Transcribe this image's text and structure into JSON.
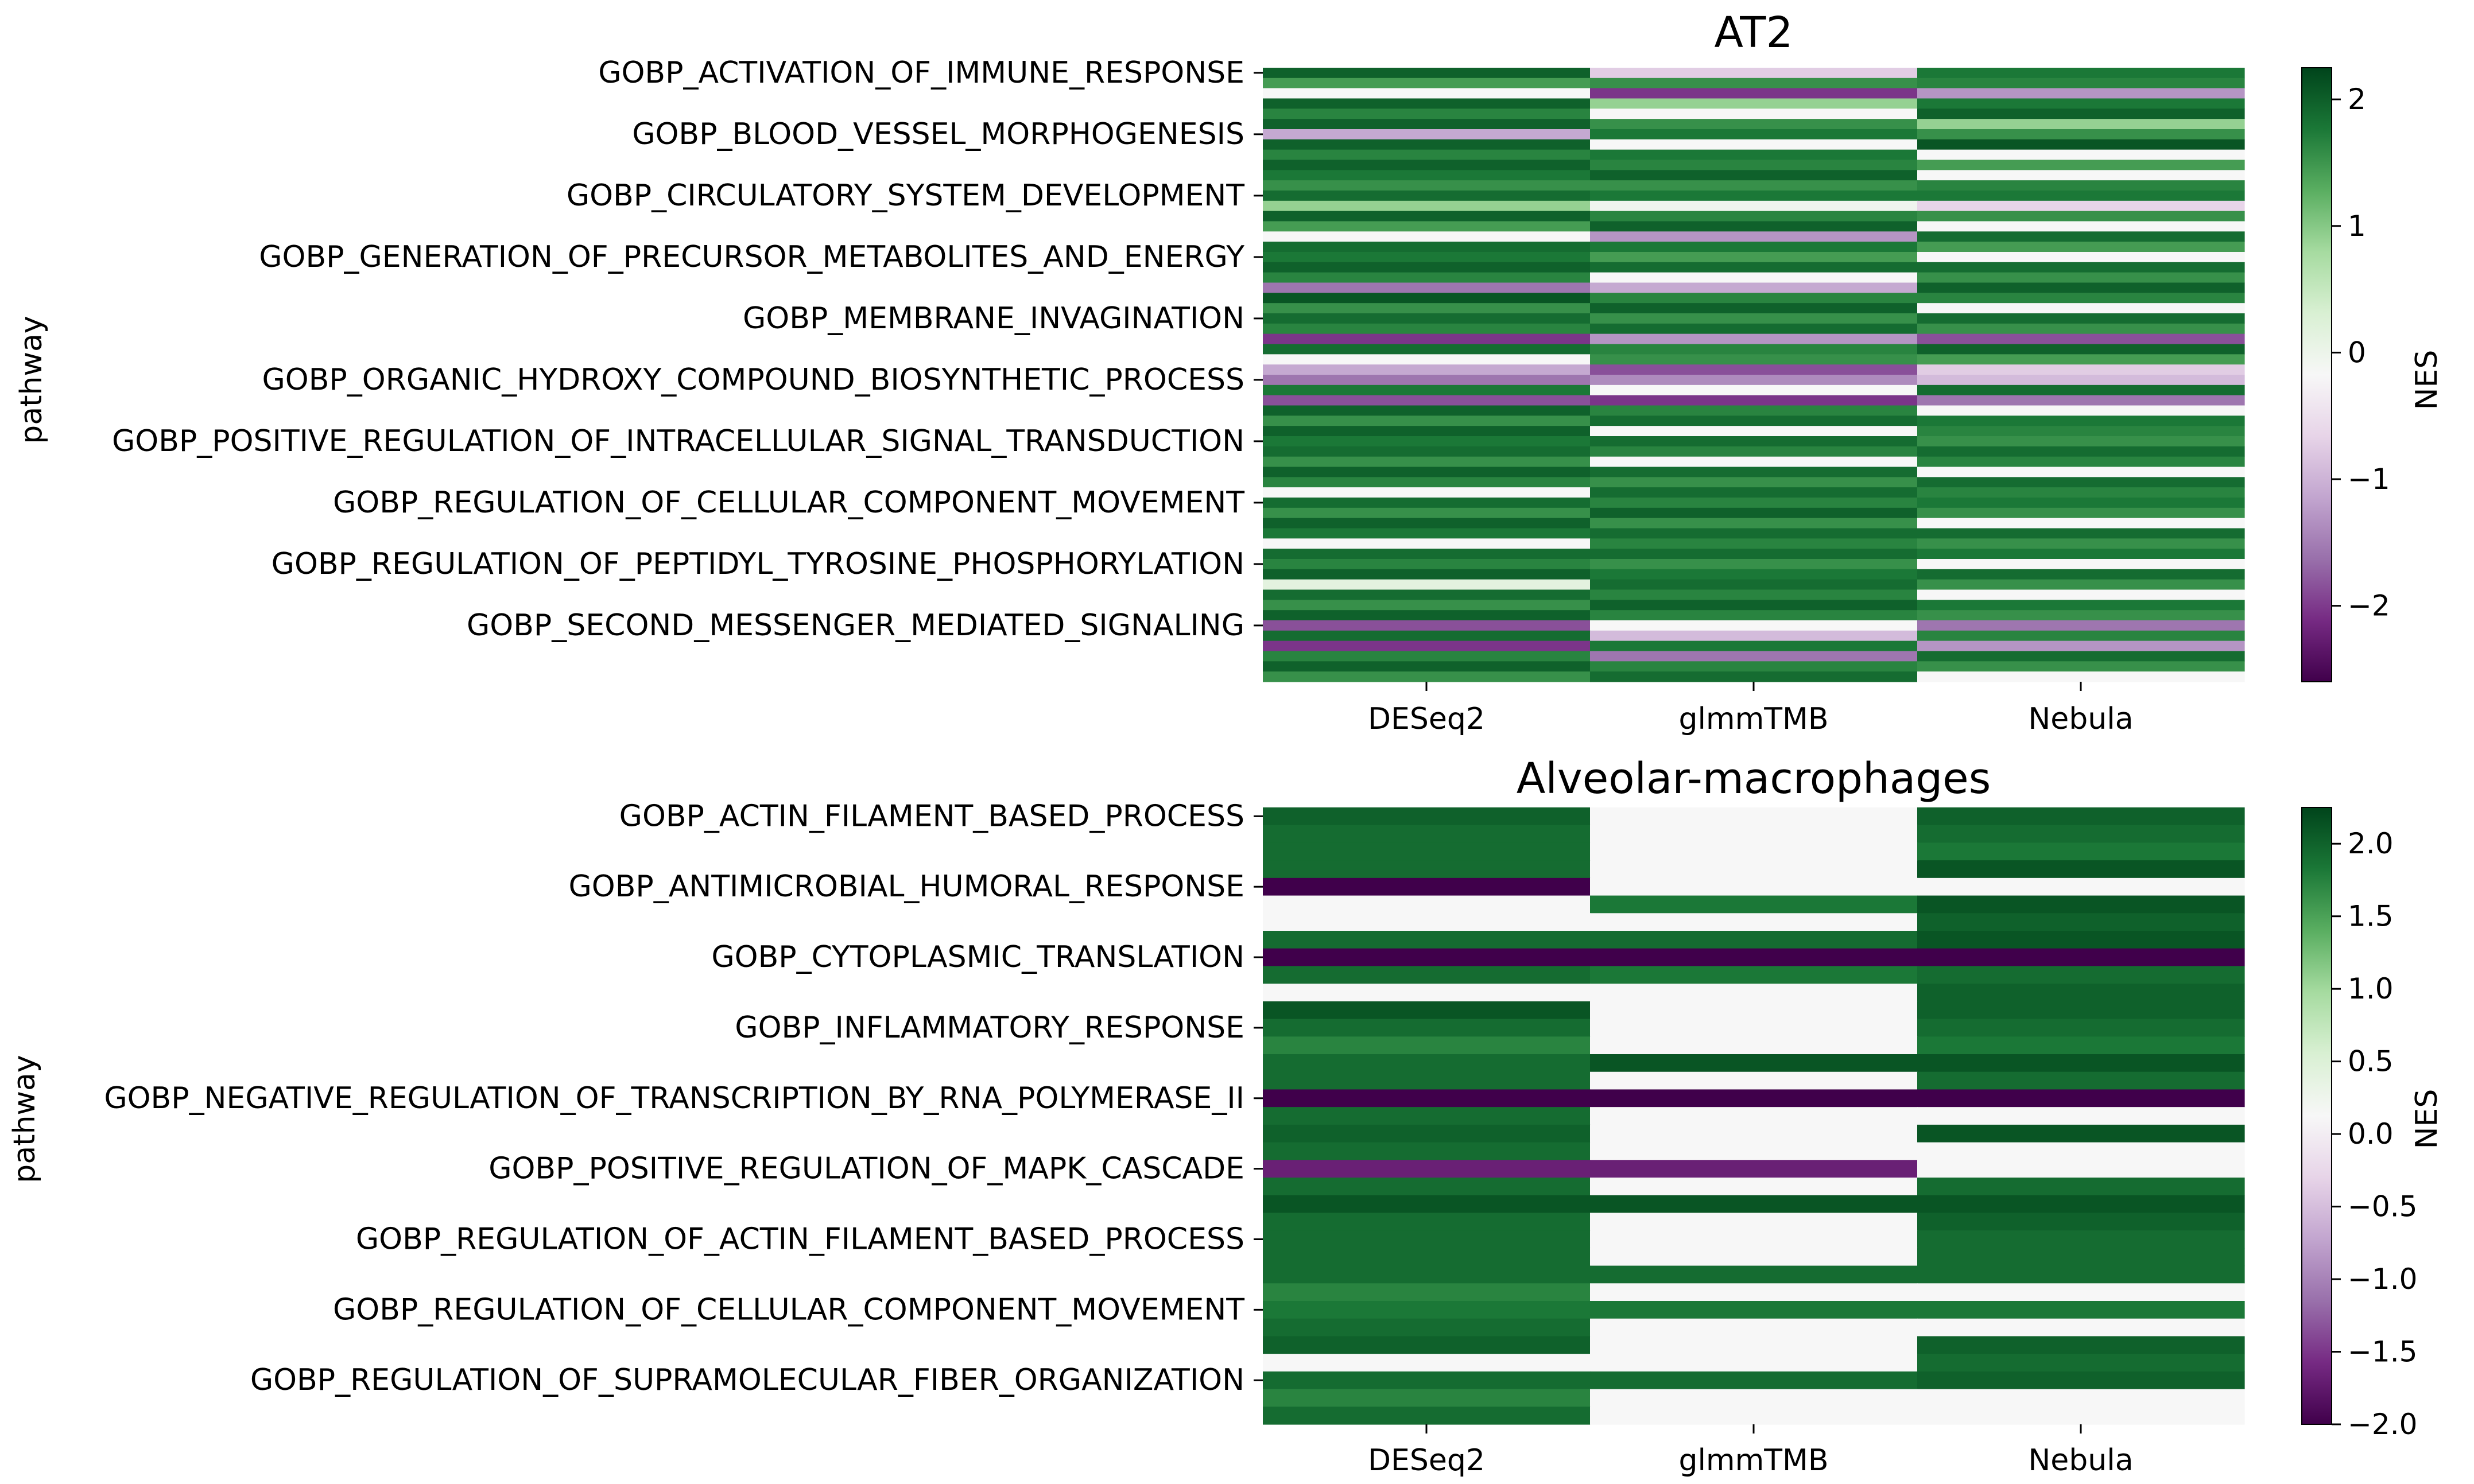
{
  "chart_data": [
    {
      "type": "heatmap",
      "title": "AT2",
      "xlabel": "",
      "ylabel": "pathway",
      "colorbar_label": "NES",
      "colormap": "PRGn",
      "vmin": -2.6,
      "vmax": 2.25,
      "colorbar_ticks": [
        "2",
        "1",
        "0",
        "−1",
        "−2"
      ],
      "colorbar_tick_values": [
        2,
        1,
        0,
        -1,
        -2
      ],
      "columns": [
        "DESeq2",
        "glmmTMB",
        "Nebula"
      ],
      "ytick_labels": [
        "GOBP_ACTIVATION_OF_IMMUNE_RESPONSE",
        "GOBP_BLOOD_VESSEL_MORPHOGENESIS",
        "GOBP_CIRCULATORY_SYSTEM_DEVELOPMENT",
        "GOBP_GENERATION_OF_PRECURSOR_METABOLITES_AND_ENERGY",
        "GOBP_MEMBRANE_INVAGINATION",
        "GOBP_ORGANIC_HYDROXY_COMPOUND_BIOSYNTHETIC_PROCESS",
        "GOBP_POSITIVE_REGULATION_OF_INTRACELLULAR_SIGNAL_TRANSDUCTION",
        "GOBP_REGULATION_OF_CELLULAR_COMPONENT_MOVEMENT",
        "GOBP_REGULATION_OF_PEPTIDYL_TYROSINE_PHOSPHORYLATION",
        "GOBP_SECOND_MESSENGER_MEDIATED_SIGNALING"
      ],
      "ytick_row_index": [
        0,
        6,
        12,
        18,
        24,
        30,
        36,
        42,
        48,
        54
      ],
      "rows": [
        [
          2.0,
          -0.6,
          1.8
        ],
        [
          1.5,
          1.6,
          1.7
        ],
        [
          0.0,
          -2.0,
          -1.2
        ],
        [
          2.0,
          1.0,
          1.8
        ],
        [
          1.7,
          0.0,
          2.0
        ],
        [
          2.0,
          1.6,
          1.0
        ],
        [
          -1.0,
          1.8,
          1.6
        ],
        [
          2.0,
          0.0,
          2.1
        ],
        [
          1.7,
          1.8,
          0.0
        ],
        [
          2.0,
          1.7,
          1.5
        ],
        [
          1.8,
          2.0,
          0.0
        ],
        [
          1.6,
          1.6,
          1.7
        ],
        [
          1.9,
          1.8,
          1.8
        ],
        [
          1.0,
          0.1,
          -0.5
        ],
        [
          2.0,
          1.7,
          1.6
        ],
        [
          1.5,
          2.0,
          0.0
        ],
        [
          0.0,
          -1.2,
          1.9
        ],
        [
          1.9,
          1.8,
          1.5
        ],
        [
          1.8,
          1.5,
          0.0
        ],
        [
          2.0,
          1.9,
          1.9
        ],
        [
          1.7,
          0.0,
          1.6
        ],
        [
          -1.5,
          -1.0,
          2.0
        ],
        [
          2.1,
          1.7,
          1.7
        ],
        [
          1.6,
          2.0,
          0.0
        ],
        [
          1.9,
          1.6,
          1.9
        ],
        [
          1.7,
          1.9,
          1.6
        ],
        [
          -2.0,
          -1.2,
          -1.8
        ],
        [
          1.9,
          1.7,
          2.0
        ],
        [
          0.0,
          1.6,
          1.5
        ],
        [
          -1.0,
          -1.8,
          -0.6
        ],
        [
          -1.5,
          -1.3,
          -0.8
        ],
        [
          1.8,
          0.0,
          1.9
        ],
        [
          -1.8,
          -2.0,
          -1.5
        ],
        [
          2.0,
          1.7,
          0.0
        ],
        [
          1.6,
          1.9,
          1.8
        ],
        [
          2.0,
          0.0,
          1.7
        ],
        [
          1.8,
          1.9,
          1.6
        ],
        [
          1.9,
          1.7,
          1.9
        ],
        [
          1.6,
          0.0,
          1.7
        ],
        [
          2.0,
          1.9,
          0.0
        ],
        [
          1.7,
          1.6,
          1.9
        ],
        [
          0.0,
          1.9,
          1.7
        ],
        [
          1.9,
          1.7,
          1.8
        ],
        [
          1.6,
          2.0,
          1.6
        ],
        [
          2.0,
          1.6,
          0.0
        ],
        [
          1.8,
          1.9,
          1.9
        ],
        [
          0.0,
          1.7,
          1.6
        ],
        [
          1.9,
          1.9,
          1.8
        ],
        [
          1.7,
          1.6,
          0.0
        ],
        [
          2.0,
          1.8,
          1.9
        ],
        [
          0.3,
          1.9,
          1.6
        ],
        [
          1.9,
          1.7,
          0.0
        ],
        [
          1.6,
          2.0,
          1.8
        ],
        [
          2.0,
          1.7,
          1.6
        ],
        [
          -1.8,
          0.0,
          -1.5
        ],
        [
          1.9,
          -0.8,
          1.7
        ],
        [
          -2.0,
          1.8,
          -1.2
        ],
        [
          1.7,
          -1.5,
          1.9
        ],
        [
          2.0,
          1.7,
          1.6
        ],
        [
          1.6,
          1.9,
          0.0
        ]
      ]
    },
    {
      "type": "heatmap",
      "title": "Alveolar-macrophages",
      "xlabel": "",
      "ylabel": "pathway",
      "colorbar_label": "NES",
      "colormap": "PRGn",
      "vmin": -2.0,
      "vmax": 2.25,
      "colorbar_ticks": [
        "2.0",
        "1.5",
        "1.0",
        "0.5",
        "0.0",
        "−0.5",
        "−1.0",
        "−1.5",
        "−2.0"
      ],
      "colorbar_tick_values": [
        2.0,
        1.5,
        1.0,
        0.5,
        0.0,
        -0.5,
        -1.0,
        -1.5,
        -2.0
      ],
      "columns": [
        "DESeq2",
        "glmmTMB",
        "Nebula"
      ],
      "ytick_labels": [
        "GOBP_ACTIN_FILAMENT_BASED_PROCESS",
        "GOBP_ANTIMICROBIAL_HUMORAL_RESPONSE",
        "GOBP_CYTOPLASMIC_TRANSLATION",
        "GOBP_INFLAMMATORY_RESPONSE",
        "GOBP_NEGATIVE_REGULATION_OF_TRANSCRIPTION_BY_RNA_POLYMERASE_II",
        "GOBP_POSITIVE_REGULATION_OF_MAPK_CASCADE",
        "GOBP_REGULATION_OF_ACTIN_FILAMENT_BASED_PROCESS",
        "GOBP_REGULATION_OF_CELLULAR_COMPONENT_MOVEMENT",
        "GOBP_REGULATION_OF_SUPRAMOLECULAR_FIBER_ORGANIZATION"
      ],
      "ytick_row_index": [
        0,
        4,
        8,
        12,
        16,
        20,
        24,
        28,
        32
      ],
      "rows": [
        [
          2.0,
          0.0,
          2.0
        ],
        [
          1.9,
          0.0,
          1.9
        ],
        [
          1.9,
          0.0,
          1.8
        ],
        [
          1.9,
          0.0,
          2.1
        ],
        [
          -2.0,
          0.0,
          0.0
        ],
        [
          0.0,
          1.8,
          2.1
        ],
        [
          0.0,
          0.0,
          2.0
        ],
        [
          1.9,
          1.9,
          2.1
        ],
        [
          -2.0,
          -2.0,
          -2.0
        ],
        [
          1.9,
          1.8,
          1.9
        ],
        [
          0.0,
          0.0,
          2.0
        ],
        [
          2.1,
          0.0,
          2.0
        ],
        [
          1.9,
          0.0,
          1.9
        ],
        [
          1.7,
          0.0,
          1.8
        ],
        [
          1.9,
          2.1,
          2.1
        ],
        [
          1.9,
          0.0,
          1.9
        ],
        [
          -2.0,
          -2.0,
          -2.0
        ],
        [
          1.9,
          0.0,
          0.0
        ],
        [
          2.0,
          0.0,
          2.1
        ],
        [
          1.9,
          0.0,
          0.0
        ],
        [
          -1.7,
          -1.7,
          0.0
        ],
        [
          1.9,
          0.0,
          1.9
        ],
        [
          2.1,
          2.1,
          2.1
        ],
        [
          1.9,
          0.0,
          2.0
        ],
        [
          1.9,
          0.0,
          1.9
        ],
        [
          1.9,
          0.0,
          1.9
        ],
        [
          1.9,
          1.9,
          1.9
        ],
        [
          1.7,
          0.0,
          0.0
        ],
        [
          1.8,
          1.8,
          1.8
        ],
        [
          1.9,
          0.0,
          0.0
        ],
        [
          2.0,
          0.0,
          2.0
        ],
        [
          0.0,
          0.0,
          1.9
        ],
        [
          1.9,
          1.9,
          2.0
        ],
        [
          1.7,
          0.0,
          0.0
        ],
        [
          1.9,
          0.0,
          0.0
        ]
      ]
    }
  ]
}
